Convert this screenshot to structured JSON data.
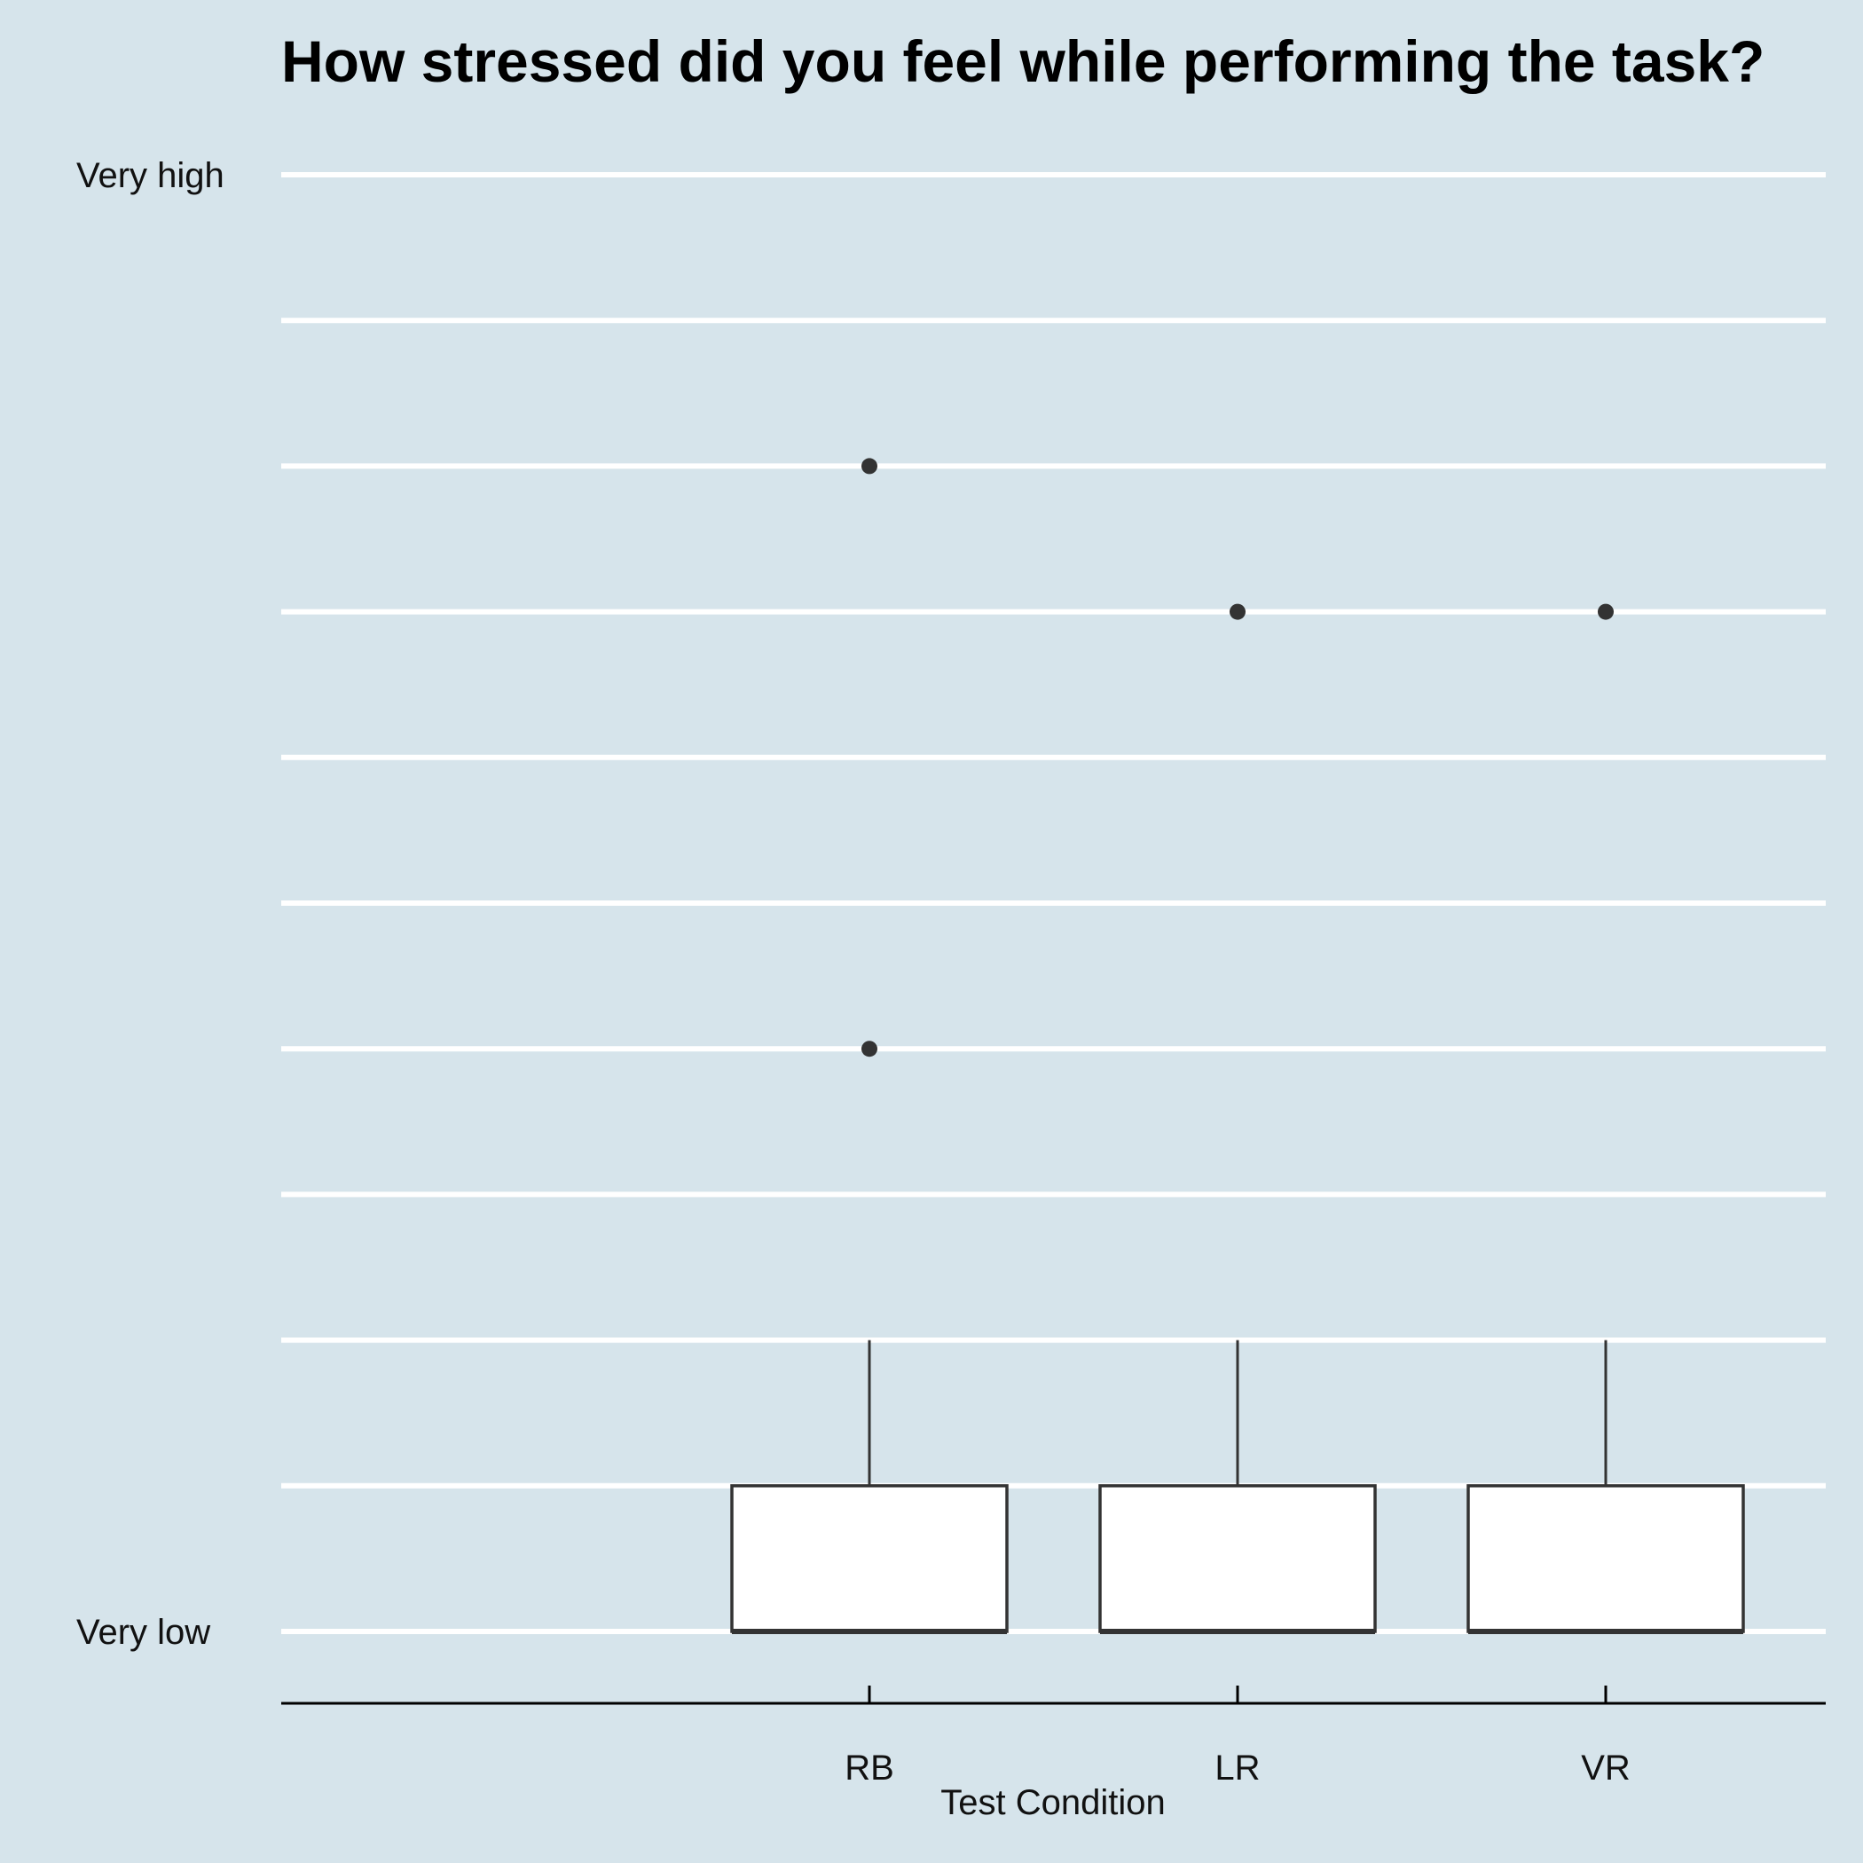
{
  "chart_data": {
    "type": "boxplot",
    "title": "How stressed did you feel while performing the task?",
    "xlabel": "Test Condition",
    "ylabel": "",
    "categories": [
      "RB",
      "LR",
      "VR"
    ],
    "y_tick_labels": [
      {
        "value": 1,
        "label": "Very low"
      },
      {
        "value": 11,
        "label": "Very high"
      }
    ],
    "ylim": [
      0.5,
      11
    ],
    "grid": true,
    "boxes": [
      {
        "category": "RB",
        "min": 1,
        "q1": 1,
        "median": 1,
        "q3": 2,
        "max": 3,
        "outliers": [
          5,
          9
        ]
      },
      {
        "category": "LR",
        "min": 1,
        "q1": 1,
        "median": 1,
        "q3": 2,
        "max": 3,
        "outliers": [
          8
        ]
      },
      {
        "category": "VR",
        "min": 1,
        "q1": 1,
        "median": 1,
        "q3": 2,
        "max": 3,
        "outliers": [
          8
        ]
      }
    ],
    "colors": {
      "background": "#d6e4eb",
      "gridline": "#ffffff",
      "box_fill": "#ffffff",
      "box_stroke": "#333333",
      "outlier": "#333333",
      "axis": "#000000"
    }
  }
}
